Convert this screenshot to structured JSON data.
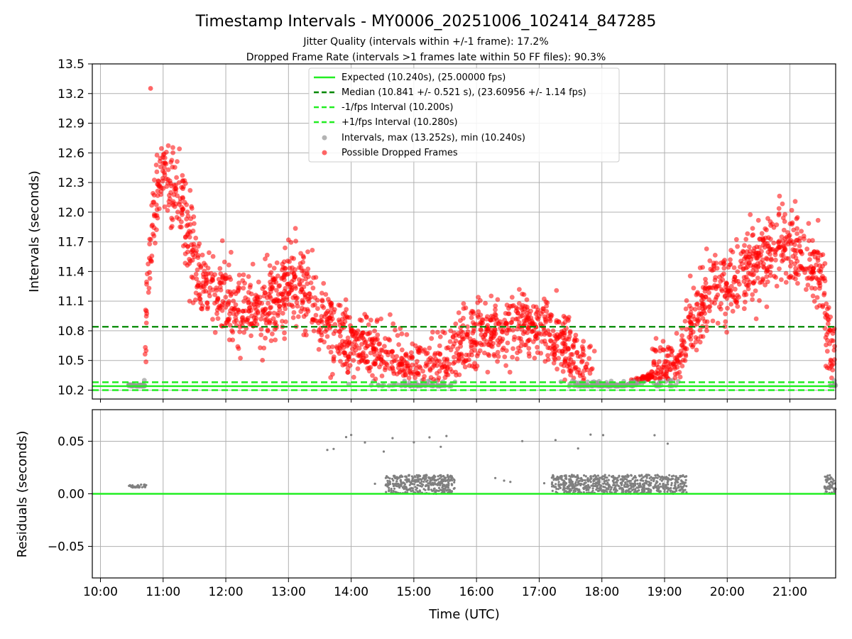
{
  "title": "Timestamp Intervals - MY0006_20251006_102414_847285",
  "subtitle1": "Jitter Quality (intervals within +/-1 frame): 17.2%",
  "subtitle2": "Dropped Frame Rate (intervals >1 frames late within 50 FF files): 90.3%",
  "colors": {
    "expected": "#22ee22",
    "median": "#008800",
    "interval_lines": "#22ee22",
    "intervals": "#9a9a9a",
    "dropped": "#ff0000",
    "residuals": "#808080",
    "grid": "#b0b0b0"
  },
  "chart_data": [
    {
      "name": "intervals",
      "type": "scatter",
      "ylabel": "Intervals (seconds)",
      "xlabel": "",
      "ylim": [
        10.11,
        13.5
      ],
      "xlim_hours": [
        9.87,
        21.73
      ],
      "yticks": [
        10.2,
        10.5,
        10.8,
        11.1,
        11.4,
        11.7,
        12.0,
        12.3,
        12.6,
        12.9,
        13.2,
        13.5
      ],
      "ytick_labels": [
        "10.2",
        "10.5",
        "10.8",
        "11.1",
        "11.4",
        "11.7",
        "12.0",
        "12.3",
        "12.6",
        "12.9",
        "13.2",
        "13.5"
      ],
      "xticks_hours": [
        10,
        11,
        12,
        13,
        14,
        15,
        16,
        17,
        18,
        19,
        20,
        21
      ],
      "grid": true,
      "legend_position": "top-center",
      "legend": [
        {
          "label": "Expected (10.240s), (25.00000 fps)",
          "kind": "line"
        },
        {
          "label": "Median (10.841 +/- 0.521 s), (23.60956 +/- 1.14 fps)",
          "kind": "dashed-dark"
        },
        {
          "label": "-1/fps Interval (10.200s)",
          "kind": "dashed"
        },
        {
          "label": "+1/fps Interval (10.280s)",
          "kind": "dashed"
        },
        {
          "label": "Intervals, max (13.252s), min (10.240s)",
          "kind": "dot-grey"
        },
        {
          "label": "Possible Dropped Frames",
          "kind": "dot-red"
        }
      ],
      "reference_lines": {
        "expected": 10.24,
        "median": 10.841,
        "minus_interval": 10.2,
        "plus_interval": 10.28
      },
      "trend_hours": [
        10.5,
        10.7,
        10.75,
        10.85,
        11.0,
        11.2,
        11.45,
        11.6,
        11.8,
        12.0,
        12.25,
        12.5,
        12.8,
        13.0,
        13.2,
        13.5,
        13.8,
        14.0,
        14.3,
        14.6,
        14.9,
        15.2,
        15.5,
        15.8,
        16.1,
        16.4,
        16.7,
        17.0,
        17.3,
        17.6,
        17.8,
        18.0,
        18.4,
        18.8,
        19.0,
        19.2,
        19.4,
        19.7,
        20.0,
        20.3,
        20.6,
        20.9,
        21.2,
        21.45,
        21.55,
        21.6,
        21.73
      ],
      "trend_values": [
        10.24,
        10.24,
        11.3,
        12.1,
        12.45,
        12.15,
        11.7,
        11.35,
        11.15,
        11.1,
        11.0,
        11.05,
        11.15,
        11.3,
        11.25,
        10.95,
        10.75,
        10.7,
        10.6,
        10.5,
        10.4,
        10.35,
        10.45,
        10.7,
        10.8,
        10.75,
        10.85,
        10.85,
        10.7,
        10.45,
        10.3,
        10.24,
        10.24,
        10.35,
        10.45,
        10.45,
        10.85,
        11.15,
        11.2,
        11.4,
        11.6,
        11.7,
        11.6,
        11.45,
        11.2,
        10.8,
        10.25
      ],
      "annotated_max": {
        "time": "10:48",
        "value": 13.252
      },
      "annotated_min": 10.24
    },
    {
      "name": "residuals",
      "type": "scatter",
      "ylabel": "Residuals (seconds)",
      "xlabel": "Time (UTC)",
      "ylim": [
        -0.08,
        0.08
      ],
      "yticks": [
        -0.05,
        0.0,
        0.05
      ],
      "ytick_labels": [
        "−0.05",
        "0.00",
        "0.05"
      ],
      "xticks_hours": [
        10,
        11,
        12,
        13,
        14,
        15,
        16,
        17,
        18,
        19,
        20,
        21
      ],
      "xtick_labels": [
        "10:00",
        "11:00",
        "12:00",
        "13:00",
        "14:00",
        "15:00",
        "16:00",
        "17:00",
        "18:00",
        "19:00",
        "20:00",
        "21:00"
      ],
      "grid": true,
      "zero_line": 0.0,
      "clusters": [
        {
          "from_hour": 10.45,
          "to_hour": 10.73,
          "low": 0.006,
          "high": 0.009
        },
        {
          "from_hour": 14.55,
          "to_hour": 15.65,
          "low": 0.0,
          "high": 0.018
        },
        {
          "from_hour": 17.2,
          "to_hour": 19.35,
          "low": 0.0,
          "high": 0.018
        },
        {
          "from_hour": 21.55,
          "to_hour": 21.73,
          "low": 0.0,
          "high": 0.018
        }
      ],
      "sparse_hours": [
        13.62,
        13.72,
        13.92,
        14.0,
        14.22,
        14.38,
        14.52,
        14.66,
        14.75,
        15.0,
        15.1,
        15.25,
        15.43,
        15.52,
        16.3,
        16.44,
        16.54,
        16.73,
        17.08,
        17.26,
        17.52,
        17.62,
        17.7,
        17.82,
        17.97,
        18.02,
        18.84,
        18.9,
        19.05,
        19.18,
        19.3
      ]
    }
  ]
}
